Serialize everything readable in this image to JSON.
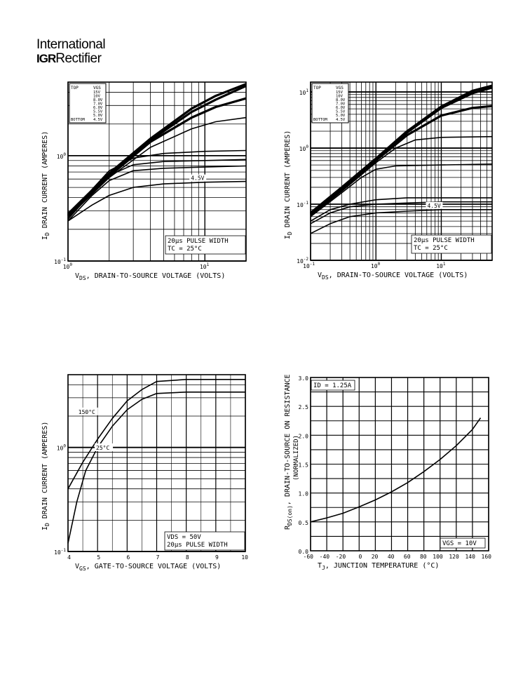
{
  "logo": {
    "line1": "International",
    "mark": "IGR",
    "rest": "Rectifier"
  },
  "chart_data": [
    {
      "id": "c1",
      "type": "line",
      "xscale": "log",
      "yscale": "log",
      "xlim": [
        1,
        20
      ],
      "ylim": [
        0.1,
        5
      ],
      "xticks": [
        {
          "v": 1,
          "l": "10",
          "e": "0"
        },
        {
          "v": 10,
          "l": "10",
          "e": "1"
        }
      ],
      "yticks": [
        {
          "v": 0.1,
          "l": "10",
          "e": "-1"
        },
        {
          "v": 1,
          "l": "10",
          "e": "0"
        }
      ],
      "xlabel": "VDS, DRAIN-TO-SOURCE VOLTAGE (VOLTS)",
      "xlabel_main": "V",
      "xlabel_sub": "DS",
      "xlabel_rest": ", DRAIN-TO-SOURCE VOLTAGE (VOLTS)",
      "ylabel_main": "I",
      "ylabel_sub": "D",
      "ylabel_rest": "  DRAIN CURRENT (AMPERES)",
      "legend": {
        "header": [
          "TOP",
          "VGS"
        ],
        "rows": [
          "15V",
          "10V",
          "8.0V",
          "7.0V",
          "6.0V",
          "5.5V",
          "5.0V"
        ],
        "bottom": [
          "BOTTOM",
          "4.5V"
        ]
      },
      "note1": "20μs PULSE WIDTH",
      "note2": "TC = 25°C",
      "curve_label": "4.5V",
      "series": [
        {
          "name": "15V",
          "x": [
            1,
            2,
            4,
            8,
            12,
            20
          ],
          "y": [
            0.28,
            0.68,
            1.45,
            2.8,
            3.7,
            4.8
          ]
        },
        {
          "name": "10V",
          "x": [
            1,
            2,
            4,
            8,
            12,
            20
          ],
          "y": [
            0.27,
            0.66,
            1.4,
            2.6,
            3.4,
            4.6
          ]
        },
        {
          "name": "8.0V",
          "x": [
            1,
            2,
            4,
            8,
            12,
            20
          ],
          "y": [
            0.27,
            0.64,
            1.35,
            2.3,
            2.9,
            3.5
          ]
        },
        {
          "name": "7.0V",
          "x": [
            1,
            2,
            4,
            8,
            12,
            20
          ],
          "y": [
            0.26,
            0.62,
            1.2,
            1.8,
            2.1,
            2.3
          ]
        },
        {
          "name": "6.0V",
          "x": [
            1,
            1.5,
            2,
            3,
            5,
            10,
            20
          ],
          "y": [
            0.26,
            0.48,
            0.72,
            0.95,
            1.05,
            1.1,
            1.12
          ]
        },
        {
          "name": "5.5V",
          "x": [
            1,
            1.5,
            2,
            3,
            5,
            10,
            20
          ],
          "y": [
            0.25,
            0.45,
            0.65,
            0.82,
            0.88,
            0.9,
            0.92
          ]
        },
        {
          "name": "5.0V",
          "x": [
            1,
            1.5,
            2,
            3,
            5,
            10,
            20
          ],
          "y": [
            0.24,
            0.42,
            0.58,
            0.72,
            0.76,
            0.78,
            0.8
          ]
        },
        {
          "name": "4.5V",
          "x": [
            1,
            1.5,
            2,
            3,
            5,
            10,
            20
          ],
          "y": [
            0.24,
            0.34,
            0.42,
            0.5,
            0.54,
            0.56,
            0.57
          ]
        }
      ]
    },
    {
      "id": "c2",
      "type": "line",
      "xscale": "log",
      "yscale": "log",
      "xlim": [
        0.1,
        60
      ],
      "ylim": [
        0.01,
        15
      ],
      "xticks": [
        {
          "v": 0.1,
          "l": "10",
          "e": "-1"
        },
        {
          "v": 1,
          "l": "10",
          "e": "0"
        },
        {
          "v": 10,
          "l": "10",
          "e": "1"
        }
      ],
      "yticks": [
        {
          "v": 0.01,
          "l": "10",
          "e": "-2"
        },
        {
          "v": 0.1,
          "l": "10",
          "e": "-1"
        },
        {
          "v": 1,
          "l": "10",
          "e": "0"
        },
        {
          "v": 10,
          "l": "10",
          "e": "1"
        }
      ],
      "xlabel_main": "V",
      "xlabel_sub": "DS",
      "xlabel_rest": ", DRAIN-TO-SOURCE VOLTAGE (VOLTS)",
      "ylabel_main": "I",
      "ylabel_sub": "D",
      "ylabel_rest": "  DRAIN CURRENT (AMPERES)",
      "legend": {
        "header": [
          "TOP",
          "VGS"
        ],
        "rows": [
          "15V",
          "10V",
          "8.0V",
          "7.0V",
          "6.0V",
          "5.5V",
          "5.0V"
        ],
        "bottom": [
          "BOTTOM",
          "4.5V"
        ]
      },
      "note1": "20μs PULSE WIDTH",
      "note2": "TC = 25°C",
      "curve_label": "4.5V",
      "series": [
        {
          "name": "15V",
          "x": [
            0.1,
            0.3,
            1,
            3,
            10,
            30,
            60
          ],
          "y": [
            0.07,
            0.2,
            0.65,
            2.0,
            5.5,
            10.5,
            13
          ]
        },
        {
          "name": "10V",
          "x": [
            0.1,
            0.3,
            1,
            3,
            10,
            30,
            60
          ],
          "y": [
            0.068,
            0.19,
            0.62,
            1.9,
            5.2,
            9.5,
            12
          ]
        },
        {
          "name": "8.0V",
          "x": [
            0.1,
            0.3,
            1,
            3,
            10,
            30,
            60
          ],
          "y": [
            0.065,
            0.18,
            0.6,
            1.7,
            3.8,
            5.2,
            5.6
          ]
        },
        {
          "name": "7.0V",
          "x": [
            0.1,
            0.3,
            1,
            2,
            4,
            10,
            60
          ],
          "y": [
            0.062,
            0.17,
            0.55,
            1.0,
            1.4,
            1.55,
            1.6
          ]
        },
        {
          "name": "6.0V",
          "x": [
            0.1,
            0.3,
            0.6,
            1,
            2,
            10,
            60
          ],
          "y": [
            0.06,
            0.16,
            0.3,
            0.42,
            0.48,
            0.5,
            0.52
          ]
        },
        {
          "name": "5.5V",
          "x": [
            0.1,
            0.2,
            0.4,
            1,
            3,
            10,
            60
          ],
          "y": [
            0.05,
            0.08,
            0.1,
            0.12,
            0.13,
            0.13,
            0.13
          ]
        },
        {
          "name": "5.0V",
          "x": [
            0.1,
            0.2,
            0.4,
            1,
            3,
            10,
            60
          ],
          "y": [
            0.045,
            0.07,
            0.09,
            0.1,
            0.105,
            0.11,
            0.11
          ]
        },
        {
          "name": "4.5V",
          "x": [
            0.1,
            0.2,
            0.4,
            1,
            3,
            10,
            60
          ],
          "y": [
            0.03,
            0.045,
            0.06,
            0.07,
            0.075,
            0.08,
            0.08
          ]
        }
      ]
    },
    {
      "id": "c3",
      "type": "line",
      "xscale": "linear",
      "yscale": "log",
      "xlim": [
        4,
        10
      ],
      "ylim": [
        0.1,
        5
      ],
      "xticks": [
        {
          "v": 4,
          "l": "4"
        },
        {
          "v": 5,
          "l": "5"
        },
        {
          "v": 6,
          "l": "6"
        },
        {
          "v": 7,
          "l": "7"
        },
        {
          "v": 8,
          "l": "8"
        },
        {
          "v": 9,
          "l": "9"
        },
        {
          "v": 10,
          "l": "10"
        }
      ],
      "yticks": [
        {
          "v": 0.1,
          "l": "10",
          "e": "-1"
        },
        {
          "v": 1,
          "l": "10",
          "e": "0"
        }
      ],
      "xlabel_main": "V",
      "xlabel_sub": "GS",
      "xlabel_rest": ", GATE-TO-SOURCE VOLTAGE (VOLTS)",
      "ylabel_main": "I",
      "ylabel_sub": "D",
      "ylabel_rest": "  DRAIN CURRENT (AMPERES)",
      "note1": "VDS = 50V",
      "note2": "20μs PULSE WIDTH",
      "label_150": "150°C",
      "label_25": "25°C",
      "series": [
        {
          "name": "150°C",
          "x": [
            4,
            4.5,
            5,
            5.5,
            6,
            6.5,
            7,
            8,
            10
          ],
          "y": [
            0.4,
            0.72,
            1.2,
            1.9,
            2.8,
            3.6,
            4.3,
            4.5,
            4.5
          ]
        },
        {
          "name": "25°C",
          "x": [
            4,
            4.3,
            4.6,
            5,
            5.5,
            6,
            6.5,
            7,
            8,
            10
          ],
          "y": [
            0.12,
            0.3,
            0.6,
            1.0,
            1.6,
            2.3,
            2.9,
            3.3,
            3.4,
            3.4
          ]
        }
      ]
    },
    {
      "id": "c4",
      "type": "line",
      "xscale": "linear",
      "yscale": "linear",
      "xlim": [
        -60,
        160
      ],
      "ylim": [
        0,
        3.0
      ],
      "xticks": [
        {
          "v": -60,
          "l": "-60"
        },
        {
          "v": -40,
          "l": "-40"
        },
        {
          "v": -20,
          "l": "-20"
        },
        {
          "v": 0,
          "l": "0"
        },
        {
          "v": 20,
          "l": "20"
        },
        {
          "v": 40,
          "l": "40"
        },
        {
          "v": 60,
          "l": "60"
        },
        {
          "v": 80,
          "l": "80"
        },
        {
          "v": 100,
          "l": "100"
        },
        {
          "v": 120,
          "l": "120"
        },
        {
          "v": 140,
          "l": "140"
        },
        {
          "v": 160,
          "l": "160"
        }
      ],
      "yticks": [
        {
          "v": 0,
          "l": "0.0"
        },
        {
          "v": 0.5,
          "l": "0.5"
        },
        {
          "v": 1.0,
          "l": "1.0"
        },
        {
          "v": 1.5,
          "l": "1.5"
        },
        {
          "v": 2.0,
          "l": "2.0"
        },
        {
          "v": 2.5,
          "l": "2.5"
        },
        {
          "v": 3.0,
          "l": "3.0"
        }
      ],
      "xlabel_main": "T",
      "xlabel_sub": "J",
      "xlabel_rest": ", JUNCTION TEMPERATURE (°C)",
      "ylabel_main": "R",
      "ylabel_sub": "DS(on)",
      "ylabel_rest": ", DRAIN-TO-SOURCE ON RESISTANCE",
      "ylabel_line2": "(NORMALIZED)",
      "note1": "ID = 1.25A",
      "note2": "VGS = 10V",
      "series": [
        {
          "name": "RDS",
          "x": [
            -60,
            -40,
            -20,
            0,
            20,
            40,
            60,
            80,
            100,
            120,
            140,
            150
          ],
          "y": [
            0.5,
            0.57,
            0.65,
            0.76,
            0.88,
            1.02,
            1.18,
            1.37,
            1.58,
            1.82,
            2.1,
            2.3
          ]
        }
      ]
    }
  ]
}
